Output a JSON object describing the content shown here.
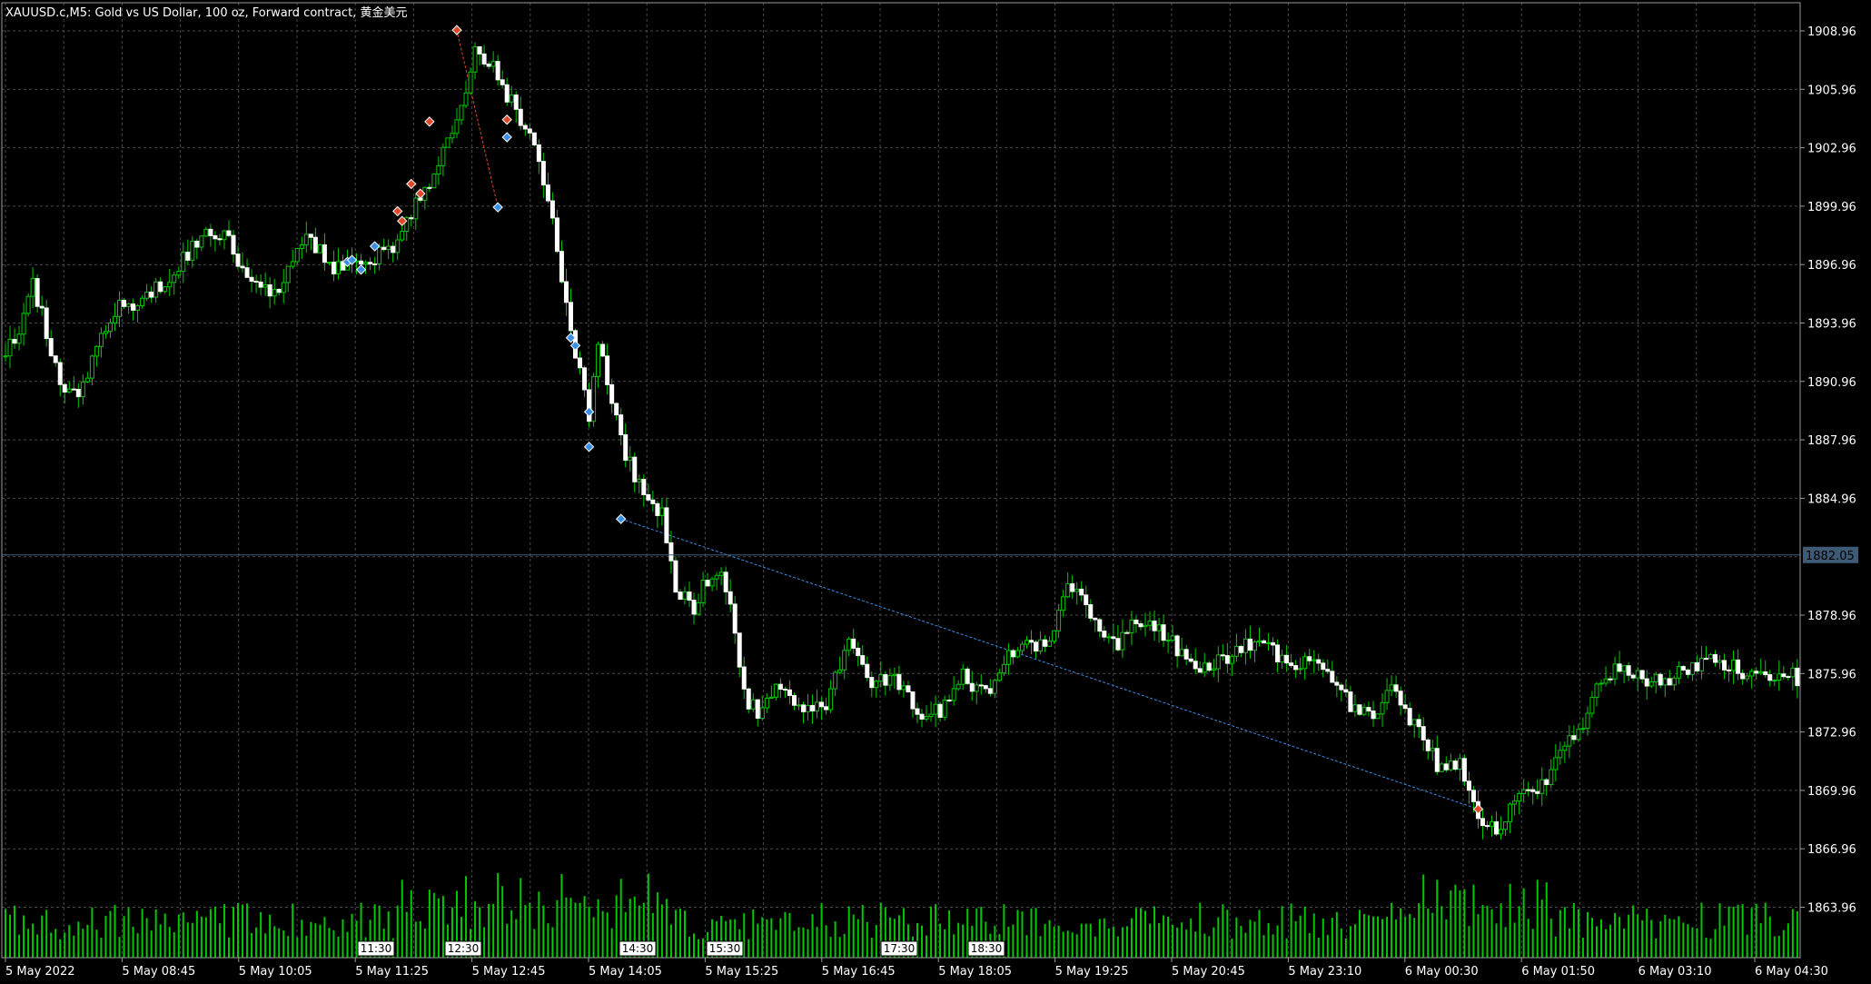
{
  "window": {
    "title": "XAUUSD.c,M5:  Gold vs US Dollar, 100 oz, Forward contract, 黄金美元"
  },
  "colors": {
    "background": "#000000",
    "grid": "#4a4a4a",
    "candle": "#00c800",
    "volume": "#00c800",
    "buy_arrow": "#3a8ee6",
    "sell_arrow": "#e0482a",
    "current_price_line": "#44617a",
    "text": "#ffffff"
  },
  "price_axis": {
    "labels": [
      "1908.96",
      "1905.96",
      "1902.96",
      "1899.96",
      "1896.96",
      "1893.96",
      "1890.96",
      "1887.96",
      "1884.96",
      "1878.96",
      "1875.96",
      "1872.96",
      "1869.96",
      "1866.96",
      "1863.96"
    ],
    "current_price": "1882.05"
  },
  "time_axis": {
    "labels": [
      "5 May 2022",
      "5 May 08:45",
      "5 May 10:05",
      "5 May 11:25",
      "5 May 12:45",
      "5 May 14:05",
      "5 May 15:25",
      "5 May 16:45",
      "5 May 18:05",
      "5 May 19:25",
      "5 May 20:45",
      "5 May 23:10",
      "6 May 00:30",
      "6 May 01:50",
      "6 May 03:10",
      "6 May 04:30"
    ],
    "tags": [
      "11:30",
      "12:30",
      "14:30",
      "15:30",
      "17:30",
      "18:30"
    ]
  },
  "chart_data": {
    "type": "candlestick",
    "symbol": "XAUUSD.c",
    "timeframe": "M5",
    "ylim": [
      1862.5,
      1910.2
    ],
    "grid": true,
    "current_price": 1882.05,
    "path_anchors": [
      {
        "i": 0,
        "p": 1892.5
      },
      {
        "i": 3,
        "p": 1893.5
      },
      {
        "i": 6,
        "p": 1895.8
      },
      {
        "i": 8,
        "p": 1894.3
      },
      {
        "i": 10,
        "p": 1892.2
      },
      {
        "i": 13,
        "p": 1890.4
      },
      {
        "i": 16,
        "p": 1890.0
      },
      {
        "i": 20,
        "p": 1893.0
      },
      {
        "i": 24,
        "p": 1894.6
      },
      {
        "i": 30,
        "p": 1895.2
      },
      {
        "i": 36,
        "p": 1896.2
      },
      {
        "i": 42,
        "p": 1898.2
      },
      {
        "i": 48,
        "p": 1898.7
      },
      {
        "i": 52,
        "p": 1896.7
      },
      {
        "i": 56,
        "p": 1895.4
      },
      {
        "i": 60,
        "p": 1895.8
      },
      {
        "i": 66,
        "p": 1898.5
      },
      {
        "i": 72,
        "p": 1896.8
      },
      {
        "i": 78,
        "p": 1897.2
      },
      {
        "i": 84,
        "p": 1897.6
      },
      {
        "i": 88,
        "p": 1899.2
      },
      {
        "i": 92,
        "p": 1900.8
      },
      {
        "i": 96,
        "p": 1902.8
      },
      {
        "i": 100,
        "p": 1905.0
      },
      {
        "i": 103,
        "p": 1908.2
      },
      {
        "i": 106,
        "p": 1907.4
      },
      {
        "i": 110,
        "p": 1905.6
      },
      {
        "i": 114,
        "p": 1904.2
      },
      {
        "i": 117,
        "p": 1902.0
      },
      {
        "i": 120,
        "p": 1899.4
      },
      {
        "i": 123,
        "p": 1894.6
      },
      {
        "i": 126,
        "p": 1891.4
      },
      {
        "i": 128,
        "p": 1889.0
      },
      {
        "i": 130,
        "p": 1893.0
      },
      {
        "i": 133,
        "p": 1890.2
      },
      {
        "i": 136,
        "p": 1887.2
      },
      {
        "i": 140,
        "p": 1885.2
      },
      {
        "i": 144,
        "p": 1884.1
      },
      {
        "i": 147,
        "p": 1880.4
      },
      {
        "i": 151,
        "p": 1879.4
      },
      {
        "i": 154,
        "p": 1880.8
      },
      {
        "i": 157,
        "p": 1881.3
      },
      {
        "i": 160,
        "p": 1878.0
      },
      {
        "i": 162,
        "p": 1874.8
      },
      {
        "i": 165,
        "p": 1874.0
      },
      {
        "i": 170,
        "p": 1875.5
      },
      {
        "i": 175,
        "p": 1874.2
      },
      {
        "i": 180,
        "p": 1874.4
      },
      {
        "i": 185,
        "p": 1877.7
      },
      {
        "i": 190,
        "p": 1875.6
      },
      {
        "i": 195,
        "p": 1875.9
      },
      {
        "i": 200,
        "p": 1874.0
      },
      {
        "i": 205,
        "p": 1874.0
      },
      {
        "i": 210,
        "p": 1875.9
      },
      {
        "i": 215,
        "p": 1874.8
      },
      {
        "i": 220,
        "p": 1877.0
      },
      {
        "i": 225,
        "p": 1877.4
      },
      {
        "i": 229,
        "p": 1877.2
      },
      {
        "i": 233,
        "p": 1880.5
      },
      {
        "i": 236,
        "p": 1880.2
      },
      {
        "i": 240,
        "p": 1877.8
      },
      {
        "i": 244,
        "p": 1877.6
      },
      {
        "i": 248,
        "p": 1878.7
      },
      {
        "i": 252,
        "p": 1878.5
      },
      {
        "i": 256,
        "p": 1877.6
      },
      {
        "i": 260,
        "p": 1876.4
      },
      {
        "i": 264,
        "p": 1876.4
      },
      {
        "i": 268,
        "p": 1876.8
      },
      {
        "i": 272,
        "p": 1877.6
      },
      {
        "i": 276,
        "p": 1877.2
      },
      {
        "i": 282,
        "p": 1876.6
      },
      {
        "i": 288,
        "p": 1876.2
      },
      {
        "i": 292,
        "p": 1875.5
      },
      {
        "i": 296,
        "p": 1874.0
      },
      {
        "i": 300,
        "p": 1873.6
      },
      {
        "i": 304,
        "p": 1875.6
      },
      {
        "i": 307,
        "p": 1874.2
      },
      {
        "i": 311,
        "p": 1872.4
      },
      {
        "i": 315,
        "p": 1871.0
      },
      {
        "i": 319,
        "p": 1871.3
      },
      {
        "i": 322,
        "p": 1869.2
      },
      {
        "i": 325,
        "p": 1868.3
      },
      {
        "i": 328,
        "p": 1867.7
      },
      {
        "i": 331,
        "p": 1869.6
      },
      {
        "i": 335,
        "p": 1869.8
      },
      {
        "i": 340,
        "p": 1871.3
      },
      {
        "i": 345,
        "p": 1873.0
      },
      {
        "i": 350,
        "p": 1875.9
      },
      {
        "i": 355,
        "p": 1876.1
      },
      {
        "i": 360,
        "p": 1875.5
      },
      {
        "i": 365,
        "p": 1875.8
      },
      {
        "i": 370,
        "p": 1876.4
      },
      {
        "i": 375,
        "p": 1876.5
      },
      {
        "i": 380,
        "p": 1876.2
      },
      {
        "i": 385,
        "p": 1875.9
      },
      {
        "i": 390,
        "p": 1876.1
      },
      {
        "i": 393,
        "p": 1875.7
      }
    ],
    "sell_markers": [
      {
        "i": 86,
        "p": 1899.7
      },
      {
        "i": 87,
        "p": 1899.2
      },
      {
        "i": 89,
        "p": 1901.1
      },
      {
        "i": 91,
        "p": 1900.6
      },
      {
        "i": 93,
        "p": 1904.3
      },
      {
        "i": 99,
        "p": 1909.0
      },
      {
        "i": 110,
        "p": 1904.4
      },
      {
        "i": 323,
        "p": 1869.0
      }
    ],
    "buy_markers": [
      {
        "i": 75,
        "p": 1897.1
      },
      {
        "i": 76,
        "p": 1897.2
      },
      {
        "i": 78,
        "p": 1896.7
      },
      {
        "i": 81,
        "p": 1897.9
      },
      {
        "i": 108,
        "p": 1899.9
      },
      {
        "i": 110,
        "p": 1903.5
      },
      {
        "i": 124,
        "p": 1893.2
      },
      {
        "i": 125,
        "p": 1892.8
      },
      {
        "i": 128,
        "p": 1889.4
      },
      {
        "i": 128,
        "p": 1887.6
      },
      {
        "i": 135,
        "p": 1883.9
      }
    ],
    "trade_lines": [
      {
        "from": {
          "i": 99,
          "p": 1909.0
        },
        "to": {
          "i": 108,
          "p": 1899.9
        },
        "color": "#e0482a"
      },
      {
        "from": {
          "i": 135,
          "p": 1883.9
        },
        "to": {
          "i": 323,
          "p": 1869.0
        },
        "color": "#3a8ee6"
      }
    ]
  }
}
